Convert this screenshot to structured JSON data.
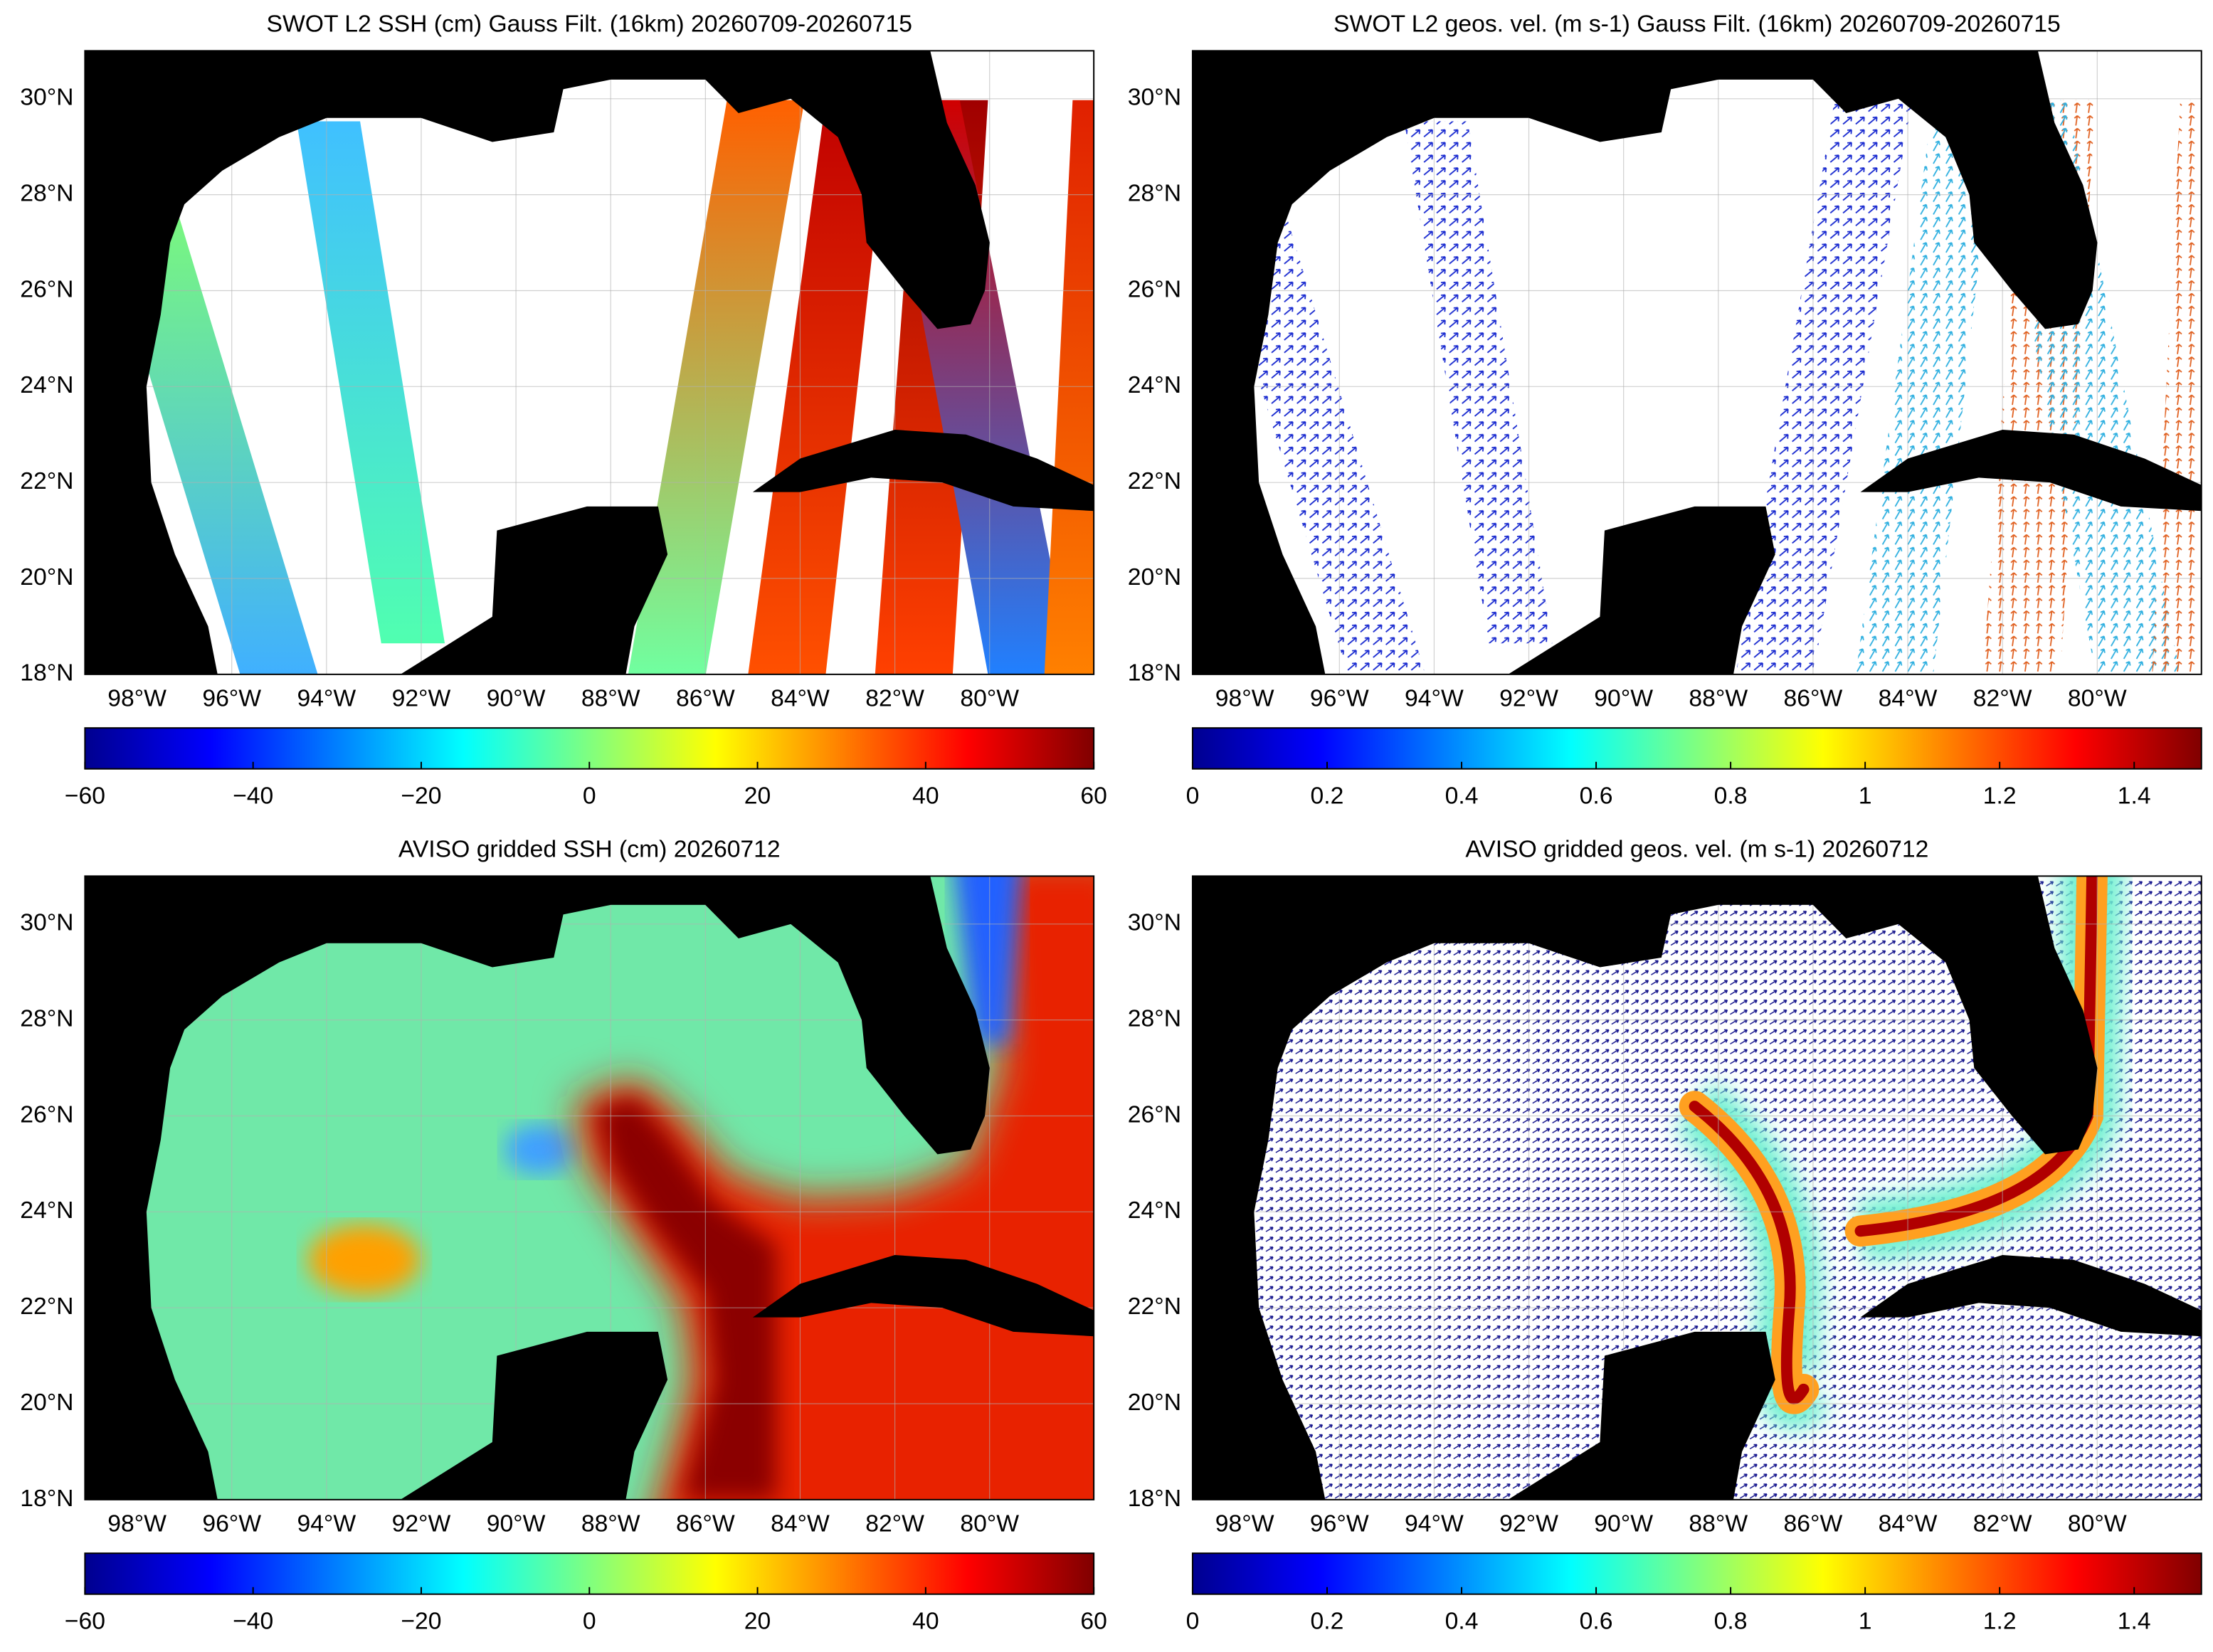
{
  "panels": [
    {
      "title": "SWOT L2 SSH (cm) Gauss Filt. (16km) 20260709-20260715",
      "xlim": [
        -99.1,
        -77.8
      ],
      "ylim": [
        18,
        31
      ],
      "xticks": [
        {
          "value": -98,
          "label": "98°W"
        },
        {
          "value": -96,
          "label": "96°W"
        },
        {
          "value": -94,
          "label": "94°W"
        },
        {
          "value": -92,
          "label": "92°W"
        },
        {
          "value": -90,
          "label": "90°W"
        },
        {
          "value": -88,
          "label": "88°W"
        },
        {
          "value": -86,
          "label": "86°W"
        },
        {
          "value": -84,
          "label": "84°W"
        },
        {
          "value": -82,
          "label": "82°W"
        },
        {
          "value": -80,
          "label": "80°W"
        }
      ],
      "yticks": [
        {
          "value": 18,
          "label": "18°N"
        },
        {
          "value": 20,
          "label": "20°N"
        },
        {
          "value": 22,
          "label": "22°N"
        },
        {
          "value": 24,
          "label": "24°N"
        },
        {
          "value": 26,
          "label": "26°N"
        },
        {
          "value": 28,
          "label": "28°N"
        },
        {
          "value": 30,
          "label": "30°N"
        }
      ],
      "colorbar": {
        "lim": [
          -60,
          60
        ],
        "ticks": [
          {
            "value": -60,
            "label": "−60"
          },
          {
            "value": -40,
            "label": "−40"
          },
          {
            "value": -20,
            "label": "−20"
          },
          0,
          20,
          40,
          60
        ]
      }
    },
    {
      "title": "SWOT L2 geos. vel. (m s-1) Gauss Filt. (16km) 20260709-20260715",
      "xlim": [
        -99.1,
        -77.8
      ],
      "ylim": [
        18,
        31
      ],
      "xticks": [
        {
          "value": -98,
          "label": "98°W"
        },
        {
          "value": -96,
          "label": "96°W"
        },
        {
          "value": -94,
          "label": "94°W"
        },
        {
          "value": -92,
          "label": "92°W"
        },
        {
          "value": -90,
          "label": "90°W"
        },
        {
          "value": -88,
          "label": "88°W"
        },
        {
          "value": -86,
          "label": "86°W"
        },
        {
          "value": -84,
          "label": "84°W"
        },
        {
          "value": -82,
          "label": "82°W"
        },
        {
          "value": -80,
          "label": "80°W"
        }
      ],
      "yticks": [
        {
          "value": 18,
          "label": "18°N"
        },
        {
          "value": 20,
          "label": "20°N"
        },
        {
          "value": 22,
          "label": "22°N"
        },
        {
          "value": 24,
          "label": "24°N"
        },
        {
          "value": 26,
          "label": "26°N"
        },
        {
          "value": 28,
          "label": "28°N"
        },
        {
          "value": 30,
          "label": "30°N"
        }
      ],
      "colorbar": {
        "lim": [
          0,
          1.5
        ],
        "ticks": [
          0,
          0.2,
          0.4,
          0.6,
          0.8,
          1,
          1.2,
          1.4
        ]
      }
    },
    {
      "title": "AVISO gridded SSH (cm) 20260712",
      "xlim": [
        -99.1,
        -77.8
      ],
      "ylim": [
        18,
        31
      ],
      "xticks": [
        {
          "value": -98,
          "label": "98°W"
        },
        {
          "value": -96,
          "label": "96°W"
        },
        {
          "value": -94,
          "label": "94°W"
        },
        {
          "value": -92,
          "label": "92°W"
        },
        {
          "value": -90,
          "label": "90°W"
        },
        {
          "value": -88,
          "label": "88°W"
        },
        {
          "value": -86,
          "label": "86°W"
        },
        {
          "value": -84,
          "label": "84°W"
        },
        {
          "value": -82,
          "label": "82°W"
        },
        {
          "value": -80,
          "label": "80°W"
        }
      ],
      "yticks": [
        {
          "value": 18,
          "label": "18°N"
        },
        {
          "value": 20,
          "label": "20°N"
        },
        {
          "value": 22,
          "label": "22°N"
        },
        {
          "value": 24,
          "label": "24°N"
        },
        {
          "value": 26,
          "label": "26°N"
        },
        {
          "value": 28,
          "label": "28°N"
        },
        {
          "value": 30,
          "label": "30°N"
        }
      ],
      "colorbar": {
        "lim": [
          -60,
          60
        ],
        "ticks": [
          {
            "value": -60,
            "label": "−60"
          },
          {
            "value": -40,
            "label": "−40"
          },
          {
            "value": -20,
            "label": "−20"
          },
          0,
          20,
          40,
          60
        ]
      }
    },
    {
      "title": "AVISO gridded geos. vel. (m s-1)  20260712",
      "xlim": [
        -99.1,
        -77.8
      ],
      "ylim": [
        18,
        31
      ],
      "xticks": [
        {
          "value": -98,
          "label": "98°W"
        },
        {
          "value": -96,
          "label": "96°W"
        },
        {
          "value": -94,
          "label": "94°W"
        },
        {
          "value": -92,
          "label": "92°W"
        },
        {
          "value": -90,
          "label": "90°W"
        },
        {
          "value": -88,
          "label": "88°W"
        },
        {
          "value": -86,
          "label": "86°W"
        },
        {
          "value": -84,
          "label": "84°W"
        },
        {
          "value": -82,
          "label": "82°W"
        },
        {
          "value": -80,
          "label": "80°W"
        }
      ],
      "yticks": [
        {
          "value": 18,
          "label": "18°N"
        },
        {
          "value": 20,
          "label": "20°N"
        },
        {
          "value": 22,
          "label": "22°N"
        },
        {
          "value": 24,
          "label": "24°N"
        },
        {
          "value": 26,
          "label": "26°N"
        },
        {
          "value": 28,
          "label": "28°N"
        },
        {
          "value": 30,
          "label": "30°N"
        }
      ],
      "colorbar": {
        "lim": [
          0,
          1.5
        ],
        "ticks": [
          0,
          0.2,
          0.4,
          0.6,
          0.8,
          1,
          1.2,
          1.4
        ]
      }
    }
  ]
}
